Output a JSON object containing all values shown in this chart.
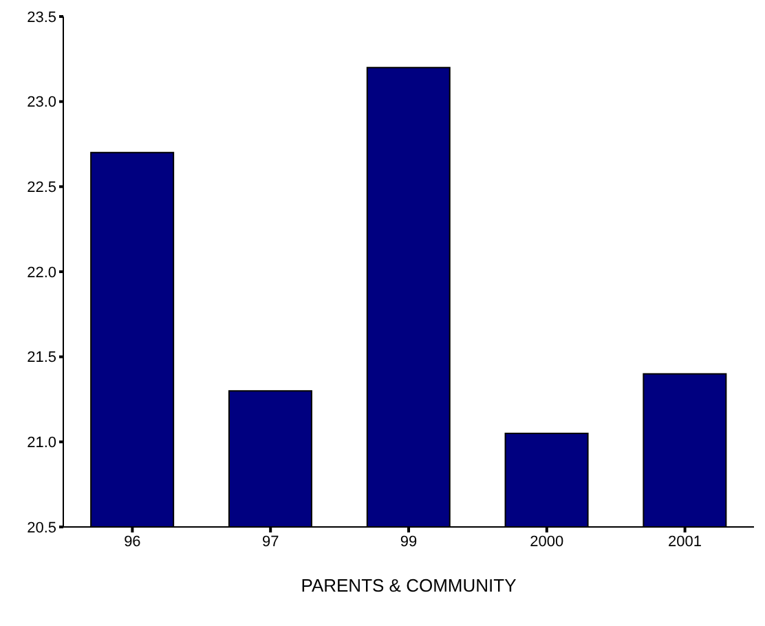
{
  "chart_data": {
    "type": "bar",
    "xlabel": "PARENTS & COMMUNITY",
    "categories": [
      "96",
      "97",
      "99",
      "2000",
      "2001"
    ],
    "values": [
      22.7,
      21.3,
      23.2,
      21.05,
      21.4
    ],
    "color": "#000080",
    "ylim": [
      20.5,
      23.5
    ],
    "yticks": [
      {
        "value": 20.5,
        "label": "20.5"
      },
      {
        "value": 21,
        "label": "21.0"
      },
      {
        "value": 21.5,
        "label": "21.5"
      },
      {
        "value": 22,
        "label": "22.0"
      },
      {
        "value": 22.5,
        "label": "22.5"
      },
      {
        "value": 23,
        "label": "23.0"
      },
      {
        "value": 23.5,
        "label": "23.5"
      }
    ],
    "grid": false
  }
}
